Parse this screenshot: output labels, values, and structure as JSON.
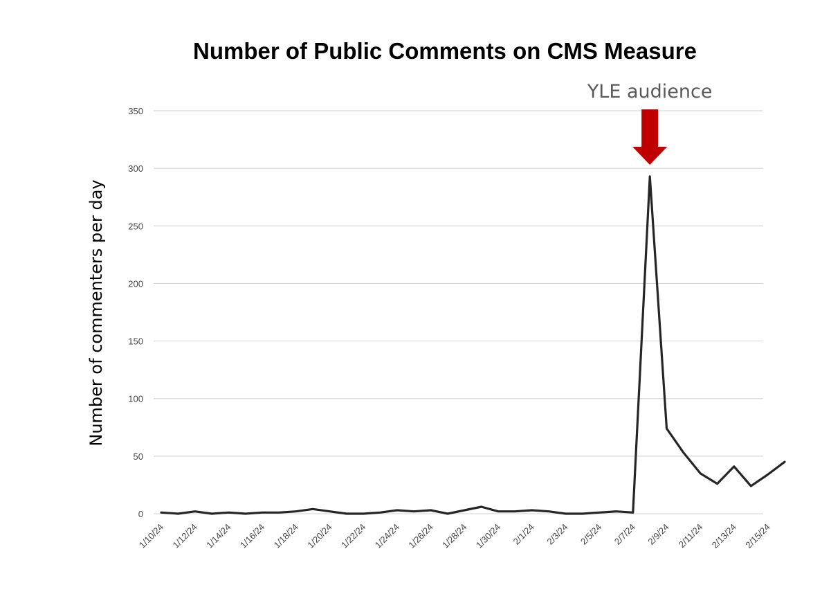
{
  "chart_data": {
    "type": "line",
    "title": "Number of Public Comments on CMS Measure",
    "xlabel": "",
    "ylabel": "Number of commenters per day",
    "ylim": [
      0,
      350
    ],
    "yticks": [
      "0",
      "50",
      "100",
      "150",
      "200",
      "250",
      "300",
      "350"
    ],
    "grid": true,
    "x": [
      "1/10/24",
      "1/11/24",
      "1/12/24",
      "1/13/24",
      "1/14/24",
      "1/15/24",
      "1/16/24",
      "1/17/24",
      "1/18/24",
      "1/19/24",
      "1/20/24",
      "1/21/24",
      "1/22/24",
      "1/23/24",
      "1/24/24",
      "1/25/24",
      "1/26/24",
      "1/27/24",
      "1/28/24",
      "1/29/24",
      "1/30/24",
      "1/31/24",
      "2/1/24",
      "2/2/24",
      "2/3/24",
      "2/4/24",
      "2/5/24",
      "2/6/24",
      "2/7/24",
      "2/8/24",
      "2/9/24",
      "2/10/24",
      "2/11/24",
      "2/12/24",
      "2/13/24",
      "2/14/24",
      "2/15/24",
      "2/16/24"
    ],
    "x_tick_labels": [
      "1/10/24",
      "1/12/24",
      "1/14/24",
      "1/16/24",
      "1/18/24",
      "1/20/24",
      "1/22/24",
      "1/24/24",
      "1/26/24",
      "1/28/24",
      "1/30/24",
      "2/1/24",
      "2/3/24",
      "2/5/24",
      "2/7/24",
      "2/9/24",
      "2/11/24",
      "2/13/24",
      "2/15/24"
    ],
    "series": [
      {
        "values": [
          1,
          0,
          2,
          0,
          1,
          0,
          1,
          1,
          2,
          4,
          2,
          0,
          0,
          1,
          3,
          2,
          3,
          0,
          3,
          6,
          2,
          2,
          3,
          2,
          0,
          0,
          1,
          2,
          1,
          293,
          74,
          53,
          35,
          26,
          41,
          24,
          34,
          45
        ]
      }
    ],
    "annotations": [
      {
        "text": "YLE audience",
        "x": "2/8/24",
        "marker": "down-arrow"
      }
    ],
    "colors": {
      "line": "#262626",
      "arrow": "#c00000",
      "annotation_text": "#595959",
      "grid": "#d9d9d9"
    }
  }
}
